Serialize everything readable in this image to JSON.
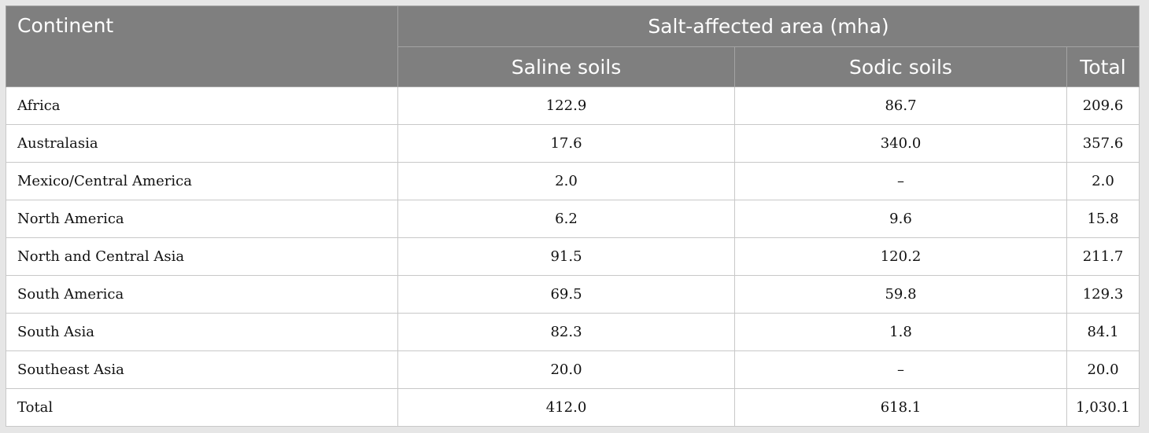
{
  "table": {
    "header": {
      "continent": "Continent",
      "group": "Salt-affected area (mha)",
      "saline": "Saline soils",
      "sodic": "Sodic soils",
      "total": "Total"
    },
    "rows": [
      {
        "continent": "Africa",
        "saline": "122.9",
        "sodic": "86.7",
        "total": "209.6"
      },
      {
        "continent": "Australasia",
        "saline": "17.6",
        "sodic": "340.0",
        "total": "357.6"
      },
      {
        "continent": "Mexico/Central America",
        "saline": "2.0",
        "sodic": "–",
        "total": "2.0"
      },
      {
        "continent": "North America",
        "saline": "6.2",
        "sodic": "9.6",
        "total": "15.8"
      },
      {
        "continent": "North and Central Asia",
        "saline": "91.5",
        "sodic": "120.2",
        "total": "211.7"
      },
      {
        "continent": "South America",
        "saline": "69.5",
        "sodic": "59.8",
        "total": "129.3"
      },
      {
        "continent": "South Asia",
        "saline": "82.3",
        "sodic": "1.8",
        "total": "84.1"
      },
      {
        "continent": "Southeast Asia",
        "saline": "20.0",
        "sodic": "–",
        "total": "20.0"
      },
      {
        "continent": "Total",
        "saline": "412.0",
        "sodic": "618.1",
        "total": "1,030.1"
      }
    ]
  }
}
